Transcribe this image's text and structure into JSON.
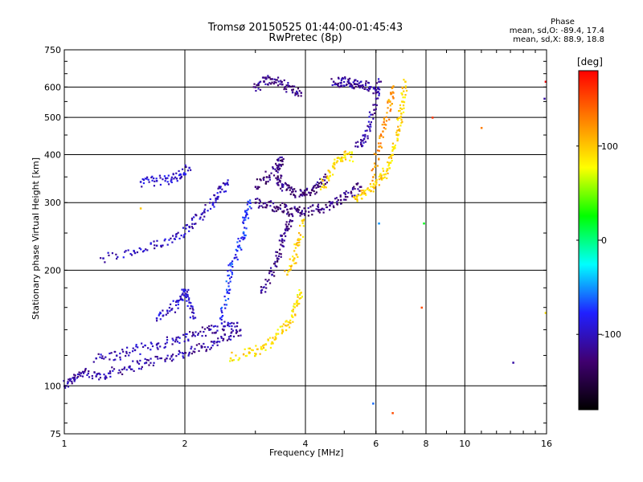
{
  "header": {
    "title_line1": "Tromsø 20150525 01:44:00-01:45:43",
    "title_line2": "RwPretec (8p)"
  },
  "phase_stats": {
    "heading": "Phase",
    "line_o": "mean, sd,O: -89.4, 17.4",
    "line_x": "mean, sd,X:  88.9, 18.8"
  },
  "colorbar": {
    "unit": "[deg]",
    "tick_labels": [
      "100",
      "0",
      "-100"
    ],
    "tick_values": [
      100,
      0,
      -100
    ],
    "range": [
      -180,
      180
    ],
    "colors": [
      "#000000",
      "#400070",
      "#2020ff",
      "#00ffff",
      "#00ff00",
      "#ffff00",
      "#ff8000",
      "#ff0000"
    ]
  },
  "chart_data": {
    "type": "scatter",
    "title": "Tromsø 20150525 01:44:00-01:45:43",
    "subtitle": "RwPretec (8p)",
    "xlabel": "Frequency [MHz]",
    "ylabel": "Stationary phase Virtual Height [km]",
    "x_scale": "log",
    "y_scale": "log",
    "xlim": [
      1,
      16
    ],
    "ylim": [
      75,
      750
    ],
    "x_ticks": [
      1,
      2,
      4,
      6,
      8,
      10,
      16
    ],
    "x_tick_labels": [
      "1",
      "2",
      "4",
      "6",
      "8",
      "10",
      "16"
    ],
    "y_ticks": [
      75,
      100,
      200,
      300,
      400,
      500,
      600,
      750
    ],
    "y_tick_labels": [
      "75",
      "100",
      "200",
      "300",
      "400",
      "500",
      "600",
      "750"
    ],
    "grid": true,
    "color_by": "phase [deg]",
    "traces": [
      {
        "phase": -110,
        "points": [
          [
            1.0,
            100
          ],
          [
            1.05,
            105
          ],
          [
            1.1,
            108
          ],
          [
            1.2,
            106
          ],
          [
            1.3,
            108
          ],
          [
            1.45,
            112
          ],
          [
            1.6,
            115
          ],
          [
            1.8,
            118
          ],
          [
            2.0,
            122
          ],
          [
            2.2,
            126
          ],
          [
            2.4,
            130
          ],
          [
            2.6,
            135
          ],
          [
            2.75,
            140
          ]
        ]
      },
      {
        "phase": -105,
        "points": [
          [
            1.2,
            118
          ],
          [
            1.35,
            120
          ],
          [
            1.5,
            124
          ],
          [
            1.7,
            128
          ],
          [
            1.9,
            132
          ],
          [
            2.1,
            136
          ],
          [
            2.3,
            140
          ],
          [
            2.5,
            143
          ],
          [
            2.7,
            146
          ]
        ]
      },
      {
        "phase": -95,
        "points": [
          [
            1.7,
            150
          ],
          [
            1.85,
            158
          ],
          [
            1.95,
            168
          ],
          [
            2.0,
            178
          ],
          [
            2.05,
            165
          ],
          [
            2.1,
            150
          ]
        ]
      },
      {
        "phase": -100,
        "points": [
          [
            1.25,
            215
          ],
          [
            1.5,
            222
          ],
          [
            1.7,
            232
          ],
          [
            1.9,
            245
          ],
          [
            2.05,
            260
          ],
          [
            2.2,
            280
          ],
          [
            2.35,
            300
          ],
          [
            2.45,
            320
          ],
          [
            2.55,
            338
          ]
        ]
      },
      {
        "phase": -95,
        "points": [
          [
            1.55,
            340
          ],
          [
            1.7,
            342
          ],
          [
            1.85,
            345
          ],
          [
            1.95,
            355
          ],
          [
            2.05,
            370
          ]
        ]
      },
      {
        "phase": -75,
        "points": [
          [
            2.45,
            150
          ],
          [
            2.55,
            175
          ],
          [
            2.6,
            200
          ],
          [
            2.7,
            225
          ],
          [
            2.8,
            250
          ],
          [
            2.85,
            280
          ],
          [
            2.9,
            300
          ]
        ]
      },
      {
        "phase": -125,
        "points": [
          [
            3.0,
            300
          ],
          [
            3.2,
            296
          ],
          [
            3.4,
            292
          ],
          [
            3.6,
            288
          ],
          [
            3.8,
            286
          ],
          [
            4.0,
            285
          ],
          [
            4.3,
            288
          ],
          [
            4.6,
            295
          ],
          [
            4.9,
            305
          ],
          [
            5.2,
            318
          ],
          [
            5.5,
            330
          ]
        ]
      },
      {
        "phase": -125,
        "points": [
          [
            3.0,
            330
          ],
          [
            3.2,
            350
          ],
          [
            3.4,
            370
          ],
          [
            3.5,
            385
          ],
          [
            3.4,
            345
          ],
          [
            3.5,
            330
          ],
          [
            3.7,
            320
          ],
          [
            3.9,
            315
          ],
          [
            4.1,
            318
          ],
          [
            4.3,
            330
          ],
          [
            4.5,
            350
          ]
        ]
      },
      {
        "phase": -120,
        "points": [
          [
            3.1,
            175
          ],
          [
            3.3,
            195
          ],
          [
            3.4,
            215
          ],
          [
            3.5,
            240
          ],
          [
            3.6,
            260
          ],
          [
            3.7,
            280
          ]
        ]
      },
      {
        "phase": -120,
        "points": [
          [
            3.0,
            600
          ],
          [
            3.15,
            620
          ],
          [
            3.3,
            630
          ],
          [
            3.5,
            610
          ],
          [
            3.7,
            590
          ],
          [
            3.9,
            580
          ]
        ]
      },
      {
        "phase": -115,
        "points": [
          [
            4.7,
            620
          ],
          [
            4.9,
            615
          ],
          [
            5.1,
            620
          ],
          [
            5.3,
            612
          ],
          [
            5.5,
            605
          ],
          [
            5.8,
            600
          ],
          [
            6.0,
            590
          ]
        ]
      },
      {
        "phase": -110,
        "points": [
          [
            5.4,
            420
          ],
          [
            5.6,
            440
          ],
          [
            5.8,
            480
          ],
          [
            6.0,
            560
          ],
          [
            6.1,
            620
          ]
        ]
      },
      {
        "phase": 90,
        "points": [
          [
            2.6,
            118
          ],
          [
            2.9,
            122
          ],
          [
            3.1,
            125
          ],
          [
            3.3,
            130
          ],
          [
            3.5,
            140
          ],
          [
            3.7,
            152
          ],
          [
            3.8,
            165
          ],
          [
            3.9,
            175
          ]
        ]
      },
      {
        "phase": 100,
        "points": [
          [
            3.6,
            195
          ],
          [
            3.75,
            215
          ],
          [
            3.85,
            240
          ],
          [
            3.95,
            270
          ]
        ]
      },
      {
        "phase": 90,
        "points": [
          [
            4.4,
            330
          ],
          [
            4.6,
            360
          ],
          [
            4.8,
            385
          ],
          [
            5.0,
            400
          ],
          [
            5.2,
            395
          ]
        ]
      },
      {
        "phase": 95,
        "points": [
          [
            5.3,
            310
          ],
          [
            5.6,
            320
          ],
          [
            5.9,
            330
          ],
          [
            6.2,
            345
          ],
          [
            6.4,
            365
          ],
          [
            6.6,
            400
          ],
          [
            6.8,
            450
          ],
          [
            6.9,
            500
          ],
          [
            7.0,
            550
          ],
          [
            7.1,
            620
          ]
        ]
      },
      {
        "phase": 120,
        "points": [
          [
            5.9,
            350
          ],
          [
            6.1,
            420
          ],
          [
            6.3,
            480
          ],
          [
            6.5,
            550
          ],
          [
            6.6,
            600
          ]
        ]
      }
    ],
    "outliers": [
      {
        "x": 5.9,
        "y": 90,
        "phase": -60
      },
      {
        "x": 6.1,
        "y": 265,
        "phase": -50
      },
      {
        "x": 7.9,
        "y": 265,
        "phase": 20
      },
      {
        "x": 8.3,
        "y": 500,
        "phase": 160
      },
      {
        "x": 11.0,
        "y": 470,
        "phase": 130
      },
      {
        "x": 6.6,
        "y": 85,
        "phase": 150
      },
      {
        "x": 13.2,
        "y": 115,
        "phase": -110
      },
      {
        "x": 15.8,
        "y": 560,
        "phase": -110
      },
      {
        "x": 15.9,
        "y": 155,
        "phase": 90
      },
      {
        "x": 15.9,
        "y": 620,
        "phase": 180
      },
      {
        "x": 1.55,
        "y": 290,
        "phase": 100
      },
      {
        "x": 7.8,
        "y": 160,
        "phase": 150
      }
    ]
  }
}
